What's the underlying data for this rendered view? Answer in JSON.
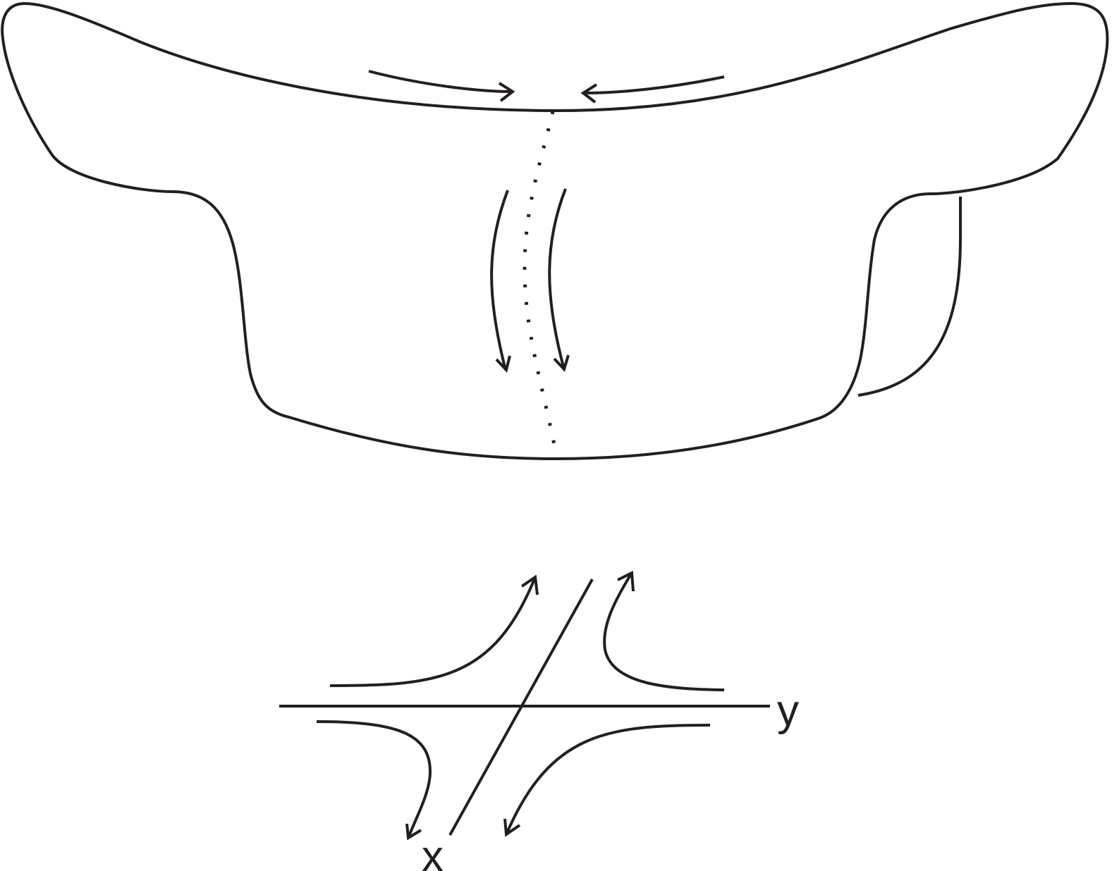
{
  "diagram": {
    "labels": {
      "x_axis": "x",
      "y_axis": "y"
    },
    "colors": {
      "stroke": "#231f20",
      "background": "#ffffff"
    }
  }
}
